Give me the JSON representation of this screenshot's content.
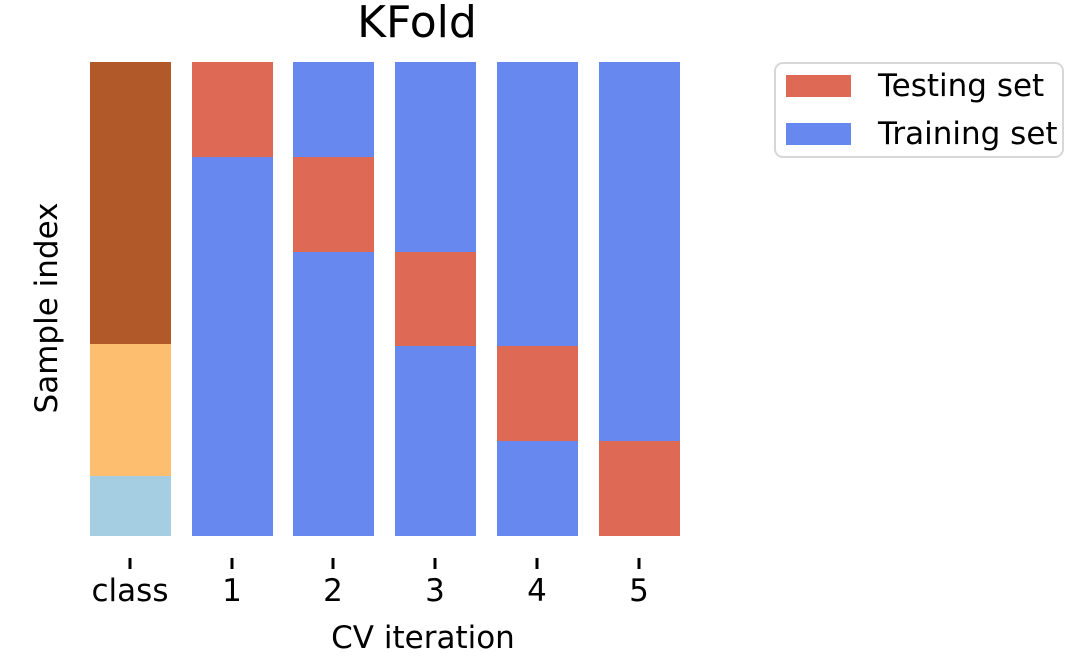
{
  "title": "KFold",
  "axes": {
    "x_label": "CV iteration",
    "y_label": "Sample index",
    "x_ticks": [
      "class",
      "1",
      "2",
      "3",
      "4",
      "5"
    ]
  },
  "legend": {
    "items": [
      {
        "label": "Testing set",
        "color_key": "test"
      },
      {
        "label": "Training set",
        "color_key": "train"
      }
    ]
  },
  "colors": {
    "test": "#de6a56",
    "train": "#6788ee",
    "class_a": "#b15928",
    "class_b": "#fdbf6f",
    "class_c": "#a6cee3",
    "text": "#000000",
    "legend_border": "#d7d7d7",
    "background": "#ffffff"
  },
  "chart_data": {
    "type": "bar",
    "subtype": "stacked-column cross-validation indices plot",
    "title": "KFold",
    "xlabel": "CV iteration",
    "ylabel": "Sample index",
    "categories": [
      "class",
      "1",
      "2",
      "3",
      "4",
      "5"
    ],
    "n_splits": 5,
    "test_fraction_per_fold": 0.2,
    "legend_position": "upper right, outside plot",
    "grid": false,
    "columns": [
      {
        "category": "class",
        "segments": [
          {
            "name": "class-a",
            "color_key": "class_a",
            "fraction": 0.595
          },
          {
            "name": "class-b",
            "color_key": "class_b",
            "fraction": 0.278
          },
          {
            "name": "class-c",
            "color_key": "class_c",
            "fraction": 0.127
          }
        ]
      },
      {
        "category": "1",
        "segments": [
          {
            "name": "test",
            "color_key": "test",
            "fraction": 0.2
          },
          {
            "name": "train",
            "color_key": "train",
            "fraction": 0.8
          }
        ]
      },
      {
        "category": "2",
        "segments": [
          {
            "name": "train",
            "color_key": "train",
            "fraction": 0.2
          },
          {
            "name": "test",
            "color_key": "test",
            "fraction": 0.2
          },
          {
            "name": "train",
            "color_key": "train",
            "fraction": 0.6
          }
        ]
      },
      {
        "category": "3",
        "segments": [
          {
            "name": "train",
            "color_key": "train",
            "fraction": 0.4
          },
          {
            "name": "test",
            "color_key": "test",
            "fraction": 0.2
          },
          {
            "name": "train",
            "color_key": "train",
            "fraction": 0.4
          }
        ]
      },
      {
        "category": "4",
        "segments": [
          {
            "name": "train",
            "color_key": "train",
            "fraction": 0.6
          },
          {
            "name": "test",
            "color_key": "test",
            "fraction": 0.2
          },
          {
            "name": "train",
            "color_key": "train",
            "fraction": 0.2
          }
        ]
      },
      {
        "category": "5",
        "segments": [
          {
            "name": "train",
            "color_key": "train",
            "fraction": 0.8
          },
          {
            "name": "test",
            "color_key": "test",
            "fraction": 0.2
          }
        ]
      }
    ]
  }
}
